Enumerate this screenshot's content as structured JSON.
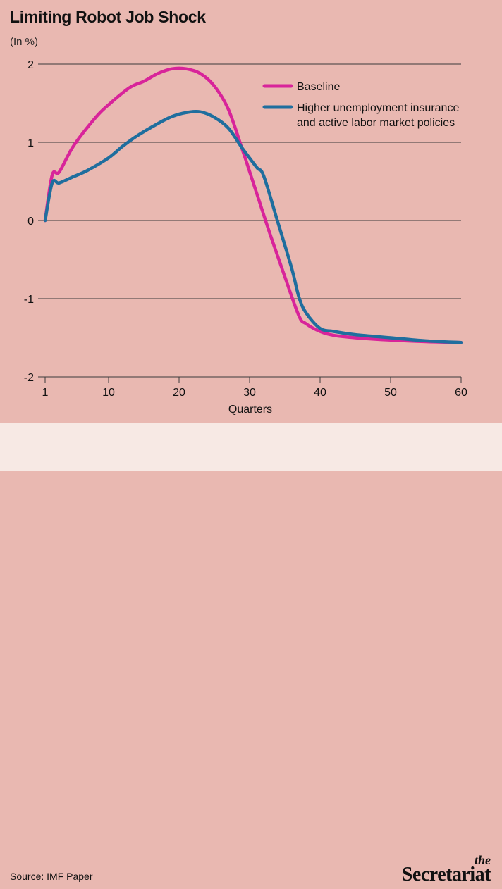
{
  "title": "Limiting Robot Job Shock",
  "unit_label": "(In %)",
  "source": "Source: IMF Paper",
  "brand": {
    "the": "the",
    "name": "Secretariat"
  },
  "colors": {
    "background": "#E9B8B1",
    "footer_background": "#F7E9E4",
    "baseline": "#D8249A",
    "policies": "#1F6E9E",
    "gridline": "#3A3A3A"
  },
  "chart_data": {
    "type": "line",
    "title": "Limiting Robot Job Shock",
    "ylabel": "(In %)",
    "xlabel": "Quarters",
    "xlim": [
      1,
      60
    ],
    "ylim": [
      -2,
      2
    ],
    "x_ticks": [
      1,
      10,
      20,
      30,
      40,
      50,
      60
    ],
    "y_ticks": [
      2,
      1,
      0,
      -1,
      -2
    ],
    "y_tick_labels": [
      "2",
      "1",
      "0",
      "-1",
      "-2"
    ],
    "grid": "horizontal",
    "legend_position": "top-right",
    "series": [
      {
        "name": "Baseline",
        "color": "#D8249A",
        "points": [
          [
            1,
            0
          ],
          [
            2,
            0.58
          ],
          [
            3,
            0.62
          ],
          [
            5,
            0.95
          ],
          [
            8,
            1.3
          ],
          [
            10,
            1.48
          ],
          [
            13,
            1.7
          ],
          [
            15,
            1.78
          ],
          [
            17,
            1.88
          ],
          [
            19,
            1.94
          ],
          [
            21,
            1.94
          ],
          [
            23,
            1.88
          ],
          [
            25,
            1.72
          ],
          [
            27,
            1.42
          ],
          [
            29,
            0.9
          ],
          [
            31,
            0.35
          ],
          [
            33,
            -0.2
          ],
          [
            35,
            -0.72
          ],
          [
            37,
            -1.22
          ],
          [
            38,
            -1.32
          ],
          [
            40,
            -1.42
          ],
          [
            42,
            -1.47
          ],
          [
            45,
            -1.5
          ],
          [
            50,
            -1.53
          ],
          [
            55,
            -1.55
          ],
          [
            60,
            -1.56
          ]
        ]
      },
      {
        "name": "Higher unemployment insurance and active labor market policies",
        "color": "#1F6E9E",
        "points": [
          [
            1,
            0
          ],
          [
            2,
            0.48
          ],
          [
            3,
            0.48
          ],
          [
            5,
            0.56
          ],
          [
            7,
            0.64
          ],
          [
            10,
            0.8
          ],
          [
            12,
            0.95
          ],
          [
            14,
            1.08
          ],
          [
            17,
            1.24
          ],
          [
            19,
            1.33
          ],
          [
            21,
            1.38
          ],
          [
            23,
            1.39
          ],
          [
            25,
            1.32
          ],
          [
            27,
            1.18
          ],
          [
            29,
            0.92
          ],
          [
            31,
            0.68
          ],
          [
            32,
            0.57
          ],
          [
            34,
            -0.02
          ],
          [
            36,
            -0.62
          ],
          [
            37,
            -0.98
          ],
          [
            38,
            -1.18
          ],
          [
            40,
            -1.38
          ],
          [
            42,
            -1.42
          ],
          [
            45,
            -1.46
          ],
          [
            50,
            -1.5
          ],
          [
            55,
            -1.54
          ],
          [
            60,
            -1.56
          ]
        ]
      }
    ]
  }
}
